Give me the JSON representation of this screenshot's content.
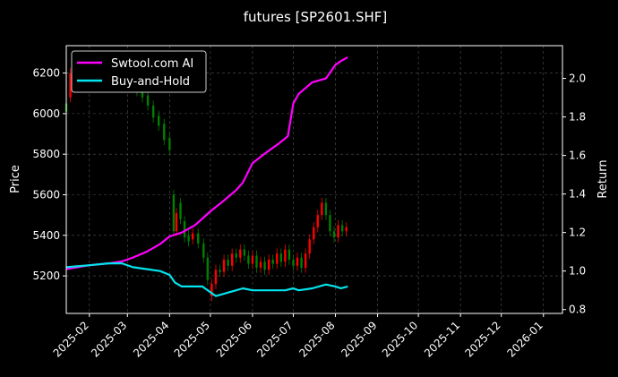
{
  "chart_data": {
    "type": "line",
    "title": "futures [SP2601.SHF]",
    "ylabel_left": "Price",
    "ylabel_right": "Return",
    "x_ticks": [
      "2025-02",
      "2025-03",
      "2025-04",
      "2025-05",
      "2025-06",
      "2025-07",
      "2025-08",
      "2025-09",
      "2025-10",
      "2025-11",
      "2025-12",
      "2026-01"
    ],
    "xlim": [
      "2025-01-15",
      "2026-01-15"
    ],
    "left_ticks": [
      5200,
      5400,
      5600,
      5800,
      6000,
      6200
    ],
    "left_ylim": [
      5015,
      6335
    ],
    "right_ticks": [
      0.8,
      1.0,
      1.2,
      1.4,
      1.6,
      1.8,
      2.0
    ],
    "right_ylim": [
      0.78,
      2.17
    ],
    "grid": true,
    "legend": "top-left",
    "colors": {
      "up": "#ff0000",
      "down": "#008000",
      "strategy": "#ff00ff",
      "benchmark": "#00e5ee",
      "background": "#000000"
    },
    "series": [
      {
        "name": "Swtool.com AI",
        "axis": "right",
        "points": [
          [
            "2025-01-15",
            1.01
          ],
          [
            "2025-02-01",
            1.03
          ],
          [
            "2025-02-15",
            1.04
          ],
          [
            "2025-02-25",
            1.05
          ],
          [
            "2025-03-05",
            1.07
          ],
          [
            "2025-03-15",
            1.1
          ],
          [
            "2025-03-25",
            1.14
          ],
          [
            "2025-04-01",
            1.18
          ],
          [
            "2025-04-10",
            1.2
          ],
          [
            "2025-04-20",
            1.24
          ],
          [
            "2025-05-01",
            1.31
          ],
          [
            "2025-05-10",
            1.36
          ],
          [
            "2025-05-20",
            1.42
          ],
          [
            "2025-05-25",
            1.46
          ],
          [
            "2025-06-01",
            1.56
          ],
          [
            "2025-06-10",
            1.61
          ],
          [
            "2025-06-20",
            1.66
          ],
          [
            "2025-06-27",
            1.7
          ],
          [
            "2025-07-01",
            1.87
          ],
          [
            "2025-07-05",
            1.92
          ],
          [
            "2025-07-10",
            1.95
          ],
          [
            "2025-07-15",
            1.98
          ],
          [
            "2025-07-25",
            2.0
          ],
          [
            "2025-08-01",
            2.07
          ],
          [
            "2025-08-05",
            2.09
          ],
          [
            "2025-08-10",
            2.11
          ]
        ]
      },
      {
        "name": "Buy-and-Hold",
        "axis": "right",
        "points": [
          [
            "2025-01-15",
            1.02
          ],
          [
            "2025-02-01",
            1.03
          ],
          [
            "2025-02-15",
            1.04
          ],
          [
            "2025-02-25",
            1.04
          ],
          [
            "2025-03-05",
            1.02
          ],
          [
            "2025-03-15",
            1.01
          ],
          [
            "2025-03-25",
            1.0
          ],
          [
            "2025-04-01",
            0.98
          ],
          [
            "2025-04-05",
            0.94
          ],
          [
            "2025-04-10",
            0.92
          ],
          [
            "2025-04-25",
            0.92
          ],
          [
            "2025-05-01",
            0.89
          ],
          [
            "2025-05-05",
            0.87
          ],
          [
            "2025-05-15",
            0.89
          ],
          [
            "2025-05-25",
            0.91
          ],
          [
            "2025-06-01",
            0.9
          ],
          [
            "2025-06-15",
            0.9
          ],
          [
            "2025-06-25",
            0.9
          ],
          [
            "2025-07-01",
            0.91
          ],
          [
            "2025-07-05",
            0.9
          ],
          [
            "2025-07-15",
            0.91
          ],
          [
            "2025-07-25",
            0.93
          ],
          [
            "2025-08-01",
            0.92
          ],
          [
            "2025-08-05",
            0.91
          ],
          [
            "2025-08-10",
            0.92
          ]
        ]
      }
    ],
    "candles": [
      [
        "2025-01-15",
        6050,
        6010
      ],
      [
        "2025-01-18",
        6080,
        6200
      ],
      [
        "2025-01-22",
        6150,
        6140
      ],
      [
        "2025-03-04",
        6200,
        6150
      ],
      [
        "2025-03-08",
        6150,
        6110
      ],
      [
        "2025-03-12",
        6120,
        6080
      ],
      [
        "2025-03-16",
        6090,
        6040
      ],
      [
        "2025-03-20",
        6040,
        5980
      ],
      [
        "2025-03-24",
        5990,
        5940
      ],
      [
        "2025-03-28",
        5950,
        5870
      ],
      [
        "2025-04-01",
        5880,
        5820
      ],
      [
        "2025-04-04",
        5600,
        5420
      ],
      [
        "2025-04-06",
        5420,
        5510
      ],
      [
        "2025-04-09",
        5560,
        5480
      ],
      [
        "2025-04-12",
        5470,
        5390
      ],
      [
        "2025-04-15",
        5400,
        5370
      ],
      [
        "2025-04-18",
        5380,
        5410
      ],
      [
        "2025-04-22",
        5410,
        5360
      ],
      [
        "2025-04-26",
        5360,
        5290
      ],
      [
        "2025-04-29",
        5290,
        5180
      ],
      [
        "2025-05-02",
        5100,
        5160
      ],
      [
        "2025-05-05",
        5160,
        5230
      ],
      [
        "2025-05-08",
        5230,
        5220
      ],
      [
        "2025-05-11",
        5220,
        5280
      ],
      [
        "2025-05-14",
        5280,
        5250
      ],
      [
        "2025-05-17",
        5250,
        5310
      ],
      [
        "2025-05-20",
        5310,
        5290
      ],
      [
        "2025-05-23",
        5290,
        5330
      ],
      [
        "2025-05-26",
        5330,
        5300
      ],
      [
        "2025-05-29",
        5300,
        5260
      ],
      [
        "2025-06-01",
        5260,
        5300
      ],
      [
        "2025-06-04",
        5300,
        5240
      ],
      [
        "2025-06-07",
        5240,
        5270
      ],
      [
        "2025-06-10",
        5270,
        5230
      ],
      [
        "2025-06-13",
        5230,
        5280
      ],
      [
        "2025-06-16",
        5280,
        5260
      ],
      [
        "2025-06-19",
        5260,
        5310
      ],
      [
        "2025-06-22",
        5310,
        5270
      ],
      [
        "2025-06-25",
        5270,
        5330
      ],
      [
        "2025-06-28",
        5330,
        5280
      ],
      [
        "2025-07-01",
        5280,
        5250
      ],
      [
        "2025-07-04",
        5250,
        5290
      ],
      [
        "2025-07-07",
        5290,
        5240
      ],
      [
        "2025-07-10",
        5240,
        5310
      ],
      [
        "2025-07-13",
        5310,
        5380
      ],
      [
        "2025-07-16",
        5380,
        5440
      ],
      [
        "2025-07-19",
        5440,
        5500
      ],
      [
        "2025-07-22",
        5500,
        5560
      ],
      [
        "2025-07-25",
        5560,
        5500
      ],
      [
        "2025-07-28",
        5500,
        5420
      ],
      [
        "2025-07-31",
        5420,
        5390
      ],
      [
        "2025-08-03",
        5390,
        5450
      ],
      [
        "2025-08-06",
        5450,
        5420
      ],
      [
        "2025-08-09",
        5420,
        5440
      ]
    ]
  }
}
